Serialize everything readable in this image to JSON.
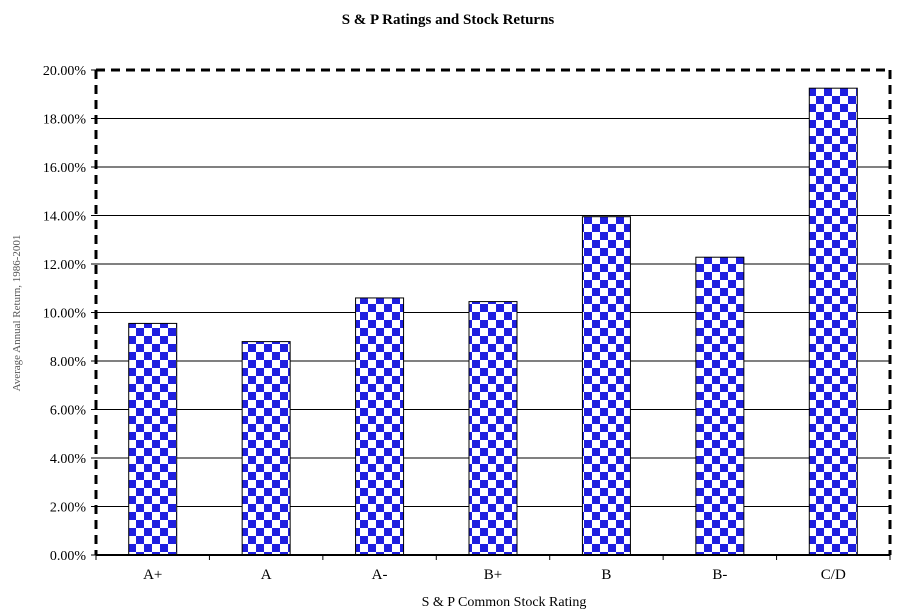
{
  "chart_data": {
    "type": "bar",
    "title": "S & P Ratings and Stock Returns",
    "xlabel": "S & P Common Stock Rating",
    "ylabel": "Average Annual Return, 1986-2001",
    "categories": [
      "A+",
      "A",
      "A-",
      "B+",
      "B",
      "B-",
      "C/D"
    ],
    "values": [
      9.55,
      8.8,
      10.6,
      10.45,
      13.95,
      12.28,
      19.25
    ],
    "ylim": [
      0,
      20
    ],
    "ytick_step": 2,
    "ytick_labels": [
      "0.00%",
      "2.00%",
      "4.00%",
      "6.00%",
      "8.00%",
      "10.00%",
      "12.00%",
      "14.00%",
      "16.00%",
      "18.00%",
      "20.00%"
    ],
    "grid": true,
    "legend": "none",
    "colors": {
      "bar_pattern_primary": "#1f1fe0",
      "bar_pattern_secondary": "#ffffff",
      "gridline": "#000000"
    }
  }
}
